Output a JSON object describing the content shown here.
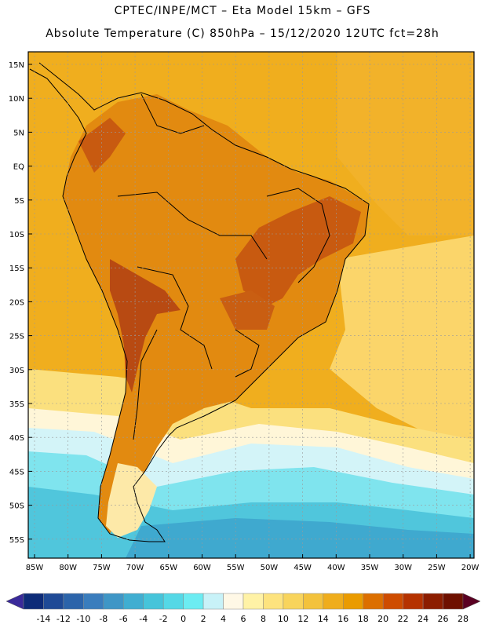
{
  "header": {
    "line1": "CPTEC/INPE/MCT –  Eta Model 15km – GFS",
    "line2": "Absolute Temperature (C) 850hPa – 15/12/2020 12UTC fct=28h"
  },
  "axes": {
    "lat_labels": [
      "15N",
      "10N",
      "5N",
      "EQ",
      "5S",
      "10S",
      "15S",
      "20S",
      "25S",
      "30S",
      "35S",
      "40S",
      "45S",
      "50S",
      "55S"
    ],
    "lon_labels": [
      "85W",
      "80W",
      "75W",
      "70W",
      "65W",
      "60W",
      "55W",
      "50W",
      "45W",
      "40W",
      "35W",
      "30W",
      "25W",
      "20W"
    ]
  },
  "legend": {
    "labels": [
      "-14",
      "-12",
      "-10",
      "-8",
      "-6",
      "-4",
      "-2",
      "0",
      "2",
      "4",
      "6",
      "8",
      "10",
      "12",
      "14",
      "16",
      "18",
      "20",
      "22",
      "24",
      "26",
      "28"
    ],
    "colors": [
      "#0d2b78",
      "#1f4a96",
      "#2c64aa",
      "#3a7dbd",
      "#3f96c6",
      "#40aed1",
      "#46c4da",
      "#55d8e6",
      "#6cecf2",
      "#c8f2f8",
      "#fff8e6",
      "#fff2a6",
      "#fde37e",
      "#f8d45c",
      "#f3c23c",
      "#efad1c",
      "#ea9b00",
      "#dc6f00",
      "#ce4c00",
      "#b53200",
      "#8c1d00",
      "#6e1000"
    ]
  }
}
